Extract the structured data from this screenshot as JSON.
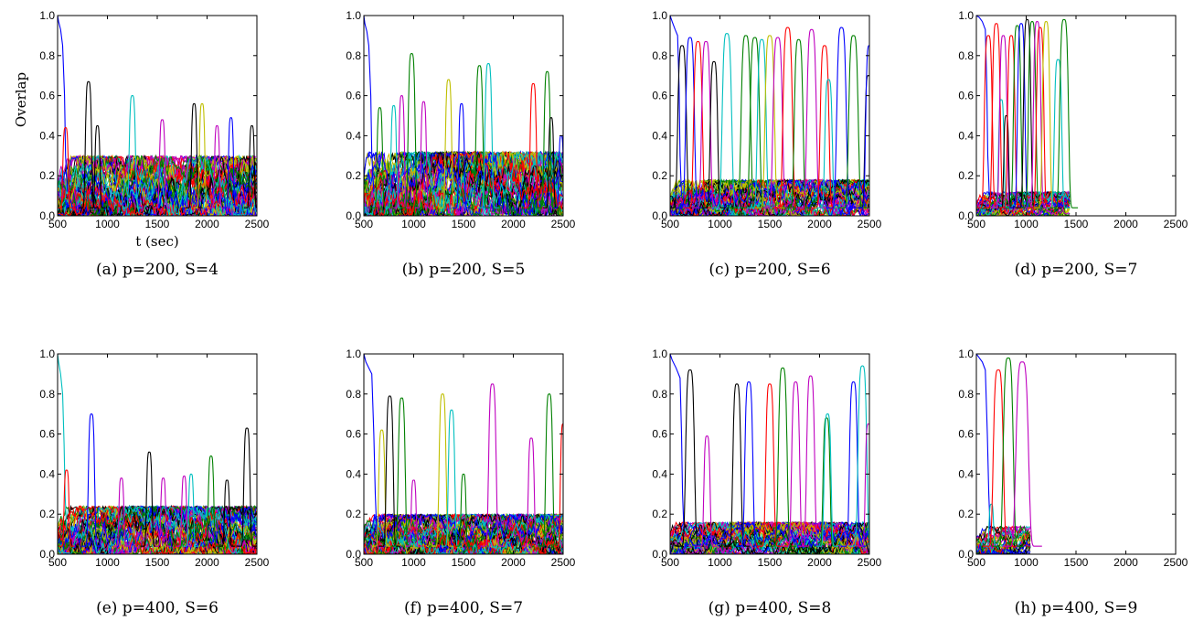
{
  "colors": {
    "series_cycle": [
      "#0000ff",
      "#008000",
      "#ff0000",
      "#00bfbf",
      "#bf00bf",
      "#bfbf00",
      "#000000"
    ]
  },
  "chart_data": [
    {
      "type": "line",
      "caption": "(a) p=200, S=4",
      "xlabel": "t (sec)",
      "ylabel": "Overlap",
      "xlim": [
        500,
        2500
      ],
      "ylim": [
        0.0,
        1.0
      ],
      "xticks": [
        "500",
        "1000",
        "1500",
        "2000",
        "2500"
      ],
      "yticks": [
        "0.0",
        "0.2",
        "0.4",
        "0.6",
        "0.8",
        "1.0"
      ],
      "x_end": 2500,
      "background": {
        "n_series": 60,
        "max": 0.3
      },
      "series": [
        {
          "color": "#0000ff",
          "x": [
            500,
            510,
            530,
            550,
            570,
            580,
            600
          ],
          "y": [
            1.0,
            0.97,
            0.93,
            0.85,
            0.6,
            0.3,
            0.12
          ]
        },
        {
          "color": "#ff0000",
          "peak_x": 580,
          "peak_y": 0.44,
          "width": 22
        },
        {
          "color": "#000000",
          "peak_x": 810,
          "peak_y": 0.67,
          "width": 25
        },
        {
          "color": "#000000",
          "peak_x": 900,
          "peak_y": 0.45,
          "width": 20
        },
        {
          "color": "#00bfbf",
          "peak_x": 1250,
          "peak_y": 0.6,
          "width": 25
        },
        {
          "color": "#bf00bf",
          "peak_x": 1550,
          "peak_y": 0.48,
          "width": 22
        },
        {
          "color": "#000000",
          "peak_x": 1870,
          "peak_y": 0.56,
          "width": 22
        },
        {
          "color": "#bfbf00",
          "peak_x": 1950,
          "peak_y": 0.56,
          "width": 22
        },
        {
          "color": "#bf00bf",
          "peak_x": 2100,
          "peak_y": 0.45,
          "width": 20
        },
        {
          "color": "#0000ff",
          "peak_x": 2240,
          "peak_y": 0.49,
          "width": 20
        },
        {
          "color": "#000000",
          "peak_x": 2450,
          "peak_y": 0.45,
          "width": 20
        }
      ]
    },
    {
      "type": "line",
      "caption": "(b) p=200, S=5",
      "xlim": [
        500,
        2500
      ],
      "ylim": [
        0.0,
        1.0
      ],
      "xticks": [
        "500",
        "1000",
        "1500",
        "2000",
        "2500"
      ],
      "yticks": [
        "0.0",
        "0.2",
        "0.4",
        "0.6",
        "0.8",
        "1.0"
      ],
      "x_end": 2500,
      "background": {
        "n_series": 60,
        "max": 0.32
      },
      "series": [
        {
          "color": "#0000ff",
          "x": [
            500,
            510,
            530,
            550,
            570,
            580,
            600
          ],
          "y": [
            1.0,
            0.96,
            0.92,
            0.85,
            0.6,
            0.3,
            0.12
          ]
        },
        {
          "color": "#008000",
          "peak_x": 660,
          "peak_y": 0.54,
          "width": 22
        },
        {
          "color": "#00bfbf",
          "peak_x": 800,
          "peak_y": 0.55,
          "width": 22
        },
        {
          "color": "#bf00bf",
          "peak_x": 880,
          "peak_y": 0.6,
          "width": 22
        },
        {
          "color": "#008000",
          "peak_x": 980,
          "peak_y": 0.81,
          "width": 28
        },
        {
          "color": "#bf00bf",
          "peak_x": 1100,
          "peak_y": 0.57,
          "width": 22
        },
        {
          "color": "#bfbf00",
          "peak_x": 1350,
          "peak_y": 0.68,
          "width": 25
        },
        {
          "color": "#0000ff",
          "peak_x": 1480,
          "peak_y": 0.56,
          "width": 22
        },
        {
          "color": "#008000",
          "peak_x": 1660,
          "peak_y": 0.75,
          "width": 28
        },
        {
          "color": "#00bfbf",
          "peak_x": 1750,
          "peak_y": 0.76,
          "width": 28
        },
        {
          "color": "#ff0000",
          "peak_x": 2200,
          "peak_y": 0.66,
          "width": 25
        },
        {
          "color": "#008000",
          "peak_x": 2340,
          "peak_y": 0.72,
          "width": 25
        },
        {
          "color": "#000000",
          "peak_x": 2380,
          "peak_y": 0.49,
          "width": 20
        },
        {
          "color": "#0000ff",
          "peak_x": 2480,
          "peak_y": 0.4,
          "width": 18
        }
      ]
    },
    {
      "type": "line",
      "caption": "(c) p=200, S=6",
      "xlim": [
        500,
        2500
      ],
      "ylim": [
        0.0,
        1.0
      ],
      "xticks": [
        "500",
        "1000",
        "1500",
        "2000",
        "2500"
      ],
      "yticks": [
        "0.0",
        "0.2",
        "0.4",
        "0.6",
        "0.8",
        "1.0"
      ],
      "x_end": 2500,
      "background": {
        "n_series": 50,
        "max": 0.18
      },
      "series": [
        {
          "color": "#0000ff",
          "x": [
            500,
            520,
            550,
            575,
            590,
            600,
            615
          ],
          "y": [
            1.0,
            0.97,
            0.93,
            0.9,
            0.65,
            0.3,
            0.1
          ]
        },
        {
          "color": "#000000",
          "peak_x": 620,
          "peak_y": 0.85,
          "width": 35
        },
        {
          "color": "#0000ff",
          "peak_x": 700,
          "peak_y": 0.89,
          "width": 35
        },
        {
          "color": "#ff0000",
          "peak_x": 780,
          "peak_y": 0.87,
          "width": 35
        },
        {
          "color": "#bf00bf",
          "peak_x": 860,
          "peak_y": 0.87,
          "width": 35
        },
        {
          "color": "#000000",
          "peak_x": 940,
          "peak_y": 0.77,
          "width": 30
        },
        {
          "color": "#00bfbf",
          "peak_x": 1070,
          "peak_y": 0.91,
          "width": 38
        },
        {
          "color": "#008000",
          "peak_x": 1260,
          "peak_y": 0.9,
          "width": 38
        },
        {
          "color": "#008000",
          "peak_x": 1350,
          "peak_y": 0.89,
          "width": 38
        },
        {
          "color": "#00bfbf",
          "peak_x": 1420,
          "peak_y": 0.88,
          "width": 35
        },
        {
          "color": "#bfbf00",
          "peak_x": 1500,
          "peak_y": 0.9,
          "width": 38
        },
        {
          "color": "#bf00bf",
          "peak_x": 1580,
          "peak_y": 0.89,
          "width": 38
        },
        {
          "color": "#ff0000",
          "peak_x": 1680,
          "peak_y": 0.94,
          "width": 38
        },
        {
          "color": "#008000",
          "peak_x": 1790,
          "peak_y": 0.88,
          "width": 35
        },
        {
          "color": "#bf00bf",
          "peak_x": 1920,
          "peak_y": 0.93,
          "width": 38
        },
        {
          "color": "#ff0000",
          "peak_x": 2050,
          "peak_y": 0.85,
          "width": 35
        },
        {
          "color": "#00bfbf",
          "peak_x": 2090,
          "peak_y": 0.68,
          "width": 30
        },
        {
          "color": "#0000ff",
          "peak_x": 2220,
          "peak_y": 0.94,
          "width": 38
        },
        {
          "color": "#008000",
          "peak_x": 2340,
          "peak_y": 0.9,
          "width": 38
        },
        {
          "color": "#000000",
          "peak_x": 2490,
          "peak_y": 0.7,
          "width": 28
        },
        {
          "color": "#0000ff",
          "peak_x": 2500,
          "peak_y": 0.85,
          "width": 30
        }
      ]
    },
    {
      "type": "line",
      "caption": "(d) p=200, S=7",
      "xlim": [
        500,
        2500
      ],
      "ylim": [
        0.0,
        1.0
      ],
      "xticks": [
        "500",
        "1000",
        "1500",
        "2000",
        "2500"
      ],
      "yticks": [
        "0.0",
        "0.2",
        "0.4",
        "0.6",
        "0.8",
        "1.0"
      ],
      "x_end": 1440,
      "background": {
        "n_series": 40,
        "max": 0.12
      },
      "series": [
        {
          "color": "#0000ff",
          "x": [
            500,
            530,
            560,
            590,
            605,
            615,
            630
          ],
          "y": [
            1.0,
            0.99,
            0.97,
            0.93,
            0.65,
            0.3,
            0.1
          ]
        },
        {
          "color": "#ff0000",
          "peak_x": 620,
          "peak_y": 0.9,
          "width": 32
        },
        {
          "color": "#ff0000",
          "peak_x": 700,
          "peak_y": 0.96,
          "width": 32
        },
        {
          "color": "#00bfbf",
          "peak_x": 750,
          "peak_y": 0.58,
          "width": 22
        },
        {
          "color": "#bf00bf",
          "peak_x": 770,
          "peak_y": 0.9,
          "width": 30
        },
        {
          "color": "#000000",
          "peak_x": 800,
          "peak_y": 0.5,
          "width": 20
        },
        {
          "color": "#ff0000",
          "peak_x": 850,
          "peak_y": 0.9,
          "width": 30
        },
        {
          "color": "#008000",
          "peak_x": 910,
          "peak_y": 0.95,
          "width": 30
        },
        {
          "color": "#0000ff",
          "peak_x": 950,
          "peak_y": 0.96,
          "width": 30
        },
        {
          "color": "#000000",
          "peak_x": 1010,
          "peak_y": 0.98,
          "width": 30
        },
        {
          "color": "#008000",
          "peak_x": 1060,
          "peak_y": 0.97,
          "width": 30
        },
        {
          "color": "#bf00bf",
          "peak_x": 1110,
          "peak_y": 0.97,
          "width": 30
        },
        {
          "color": "#ff0000",
          "peak_x": 1140,
          "peak_y": 0.94,
          "width": 30
        },
        {
          "color": "#bfbf00",
          "peak_x": 1200,
          "peak_y": 0.97,
          "width": 30
        },
        {
          "color": "#00bfbf",
          "peak_x": 1320,
          "peak_y": 0.78,
          "width": 30
        },
        {
          "color": "#008000",
          "peak_x": 1380,
          "peak_y": 0.98,
          "width": 35
        }
      ]
    },
    {
      "type": "line",
      "caption": "(e) p=400, S=6",
      "xlim": [
        500,
        2500
      ],
      "ylim": [
        0.0,
        1.0
      ],
      "xticks": [
        "500",
        "1000",
        "1500",
        "2000",
        "2500"
      ],
      "yticks": [
        "0.0",
        "0.2",
        "0.4",
        "0.6",
        "0.8",
        "1.0"
      ],
      "x_end": 2500,
      "background": {
        "n_series": 60,
        "max": 0.24
      },
      "series": [
        {
          "color": "#00bfbf",
          "x": [
            500,
            510,
            530,
            550,
            565,
            575,
            590
          ],
          "y": [
            1.0,
            0.96,
            0.9,
            0.8,
            0.55,
            0.3,
            0.12
          ]
        },
        {
          "color": "#ff0000",
          "peak_x": 590,
          "peak_y": 0.42,
          "width": 20
        },
        {
          "color": "#0000ff",
          "peak_x": 840,
          "peak_y": 0.7,
          "width": 25
        },
        {
          "color": "#bf00bf",
          "peak_x": 1140,
          "peak_y": 0.38,
          "width": 20
        },
        {
          "color": "#000000",
          "peak_x": 1420,
          "peak_y": 0.51,
          "width": 22
        },
        {
          "color": "#bf00bf",
          "peak_x": 1560,
          "peak_y": 0.38,
          "width": 20
        },
        {
          "color": "#bf00bf",
          "peak_x": 1770,
          "peak_y": 0.39,
          "width": 20
        },
        {
          "color": "#00bfbf",
          "peak_x": 1840,
          "peak_y": 0.4,
          "width": 20
        },
        {
          "color": "#008000",
          "peak_x": 2040,
          "peak_y": 0.49,
          "width": 22
        },
        {
          "color": "#000000",
          "peak_x": 2200,
          "peak_y": 0.37,
          "width": 20
        },
        {
          "color": "#000000",
          "peak_x": 2400,
          "peak_y": 0.63,
          "width": 25
        }
      ]
    },
    {
      "type": "line",
      "caption": "(f) p=400, S=7",
      "xlim": [
        500,
        2500
      ],
      "ylim": [
        0.0,
        1.0
      ],
      "xticks": [
        "500",
        "1000",
        "1500",
        "2000",
        "2500"
      ],
      "yticks": [
        "0.0",
        "0.2",
        "0.4",
        "0.6",
        "0.8",
        "1.0"
      ],
      "x_end": 2500,
      "background": {
        "n_series": 60,
        "max": 0.2
      },
      "series": [
        {
          "color": "#0000ff",
          "x": [
            500,
            520,
            550,
            580,
            600,
            615,
            630
          ],
          "y": [
            1.0,
            0.96,
            0.93,
            0.9,
            0.6,
            0.3,
            0.1
          ]
        },
        {
          "color": "#bfbf00",
          "peak_x": 680,
          "peak_y": 0.62,
          "width": 25
        },
        {
          "color": "#000000",
          "peak_x": 760,
          "peak_y": 0.79,
          "width": 28
        },
        {
          "color": "#008000",
          "peak_x": 880,
          "peak_y": 0.78,
          "width": 28
        },
        {
          "color": "#bf00bf",
          "peak_x": 1000,
          "peak_y": 0.37,
          "width": 20
        },
        {
          "color": "#bfbf00",
          "peak_x": 1290,
          "peak_y": 0.8,
          "width": 28
        },
        {
          "color": "#00bfbf",
          "peak_x": 1380,
          "peak_y": 0.72,
          "width": 26
        },
        {
          "color": "#008000",
          "peak_x": 1500,
          "peak_y": 0.4,
          "width": 20
        },
        {
          "color": "#bf00bf",
          "peak_x": 1790,
          "peak_y": 0.85,
          "width": 30
        },
        {
          "color": "#bf00bf",
          "peak_x": 2180,
          "peak_y": 0.58,
          "width": 24
        },
        {
          "color": "#008000",
          "peak_x": 2360,
          "peak_y": 0.8,
          "width": 28
        },
        {
          "color": "#ff0000",
          "peak_x": 2500,
          "peak_y": 0.65,
          "width": 22
        }
      ]
    },
    {
      "type": "line",
      "caption": "(g) p=400, S=8",
      "xlim": [
        500,
        2500
      ],
      "ylim": [
        0.0,
        1.0
      ],
      "xticks": [
        "500",
        "1000",
        "1500",
        "2000",
        "2500"
      ],
      "yticks": [
        "0.0",
        "0.2",
        "0.4",
        "0.6",
        "0.8",
        "1.0"
      ],
      "x_end": 2500,
      "background": {
        "n_series": 50,
        "max": 0.16
      },
      "series": [
        {
          "color": "#0000ff",
          "x": [
            500,
            520,
            560,
            600,
            615,
            625,
            640
          ],
          "y": [
            1.0,
            0.97,
            0.93,
            0.88,
            0.6,
            0.3,
            0.1
          ]
        },
        {
          "color": "#000000",
          "peak_x": 700,
          "peak_y": 0.92,
          "width": 35
        },
        {
          "color": "#bf00bf",
          "peak_x": 870,
          "peak_y": 0.59,
          "width": 25
        },
        {
          "color": "#000000",
          "peak_x": 1170,
          "peak_y": 0.85,
          "width": 32
        },
        {
          "color": "#0000ff",
          "peak_x": 1290,
          "peak_y": 0.86,
          "width": 32
        },
        {
          "color": "#ff0000",
          "peak_x": 1500,
          "peak_y": 0.85,
          "width": 32
        },
        {
          "color": "#008000",
          "peak_x": 1630,
          "peak_y": 0.93,
          "width": 35
        },
        {
          "color": "#bf00bf",
          "peak_x": 1760,
          "peak_y": 0.86,
          "width": 32
        },
        {
          "color": "#bf00bf",
          "peak_x": 1910,
          "peak_y": 0.89,
          "width": 32
        },
        {
          "color": "#008000",
          "peak_x": 2070,
          "peak_y": 0.68,
          "width": 28
        },
        {
          "color": "#00bfbf",
          "peak_x": 2080,
          "peak_y": 0.7,
          "width": 28
        },
        {
          "color": "#0000ff",
          "peak_x": 2340,
          "peak_y": 0.86,
          "width": 32
        },
        {
          "color": "#00bfbf",
          "peak_x": 2430,
          "peak_y": 0.94,
          "width": 35
        },
        {
          "color": "#bf00bf",
          "peak_x": 2490,
          "peak_y": 0.65,
          "width": 25
        }
      ]
    },
    {
      "type": "line",
      "caption": "(h) p=400, S=9",
      "xlim": [
        500,
        2500
      ],
      "ylim": [
        0.0,
        1.0
      ],
      "xticks": [
        "500",
        "1000",
        "1500",
        "2000",
        "2500"
      ],
      "yticks": [
        "0.0",
        "0.2",
        "0.4",
        "0.6",
        "0.8",
        "1.0"
      ],
      "x_end": 1040,
      "background": {
        "n_series": 30,
        "max": 0.14
      },
      "series": [
        {
          "color": "#0000ff",
          "x": [
            500,
            530,
            560,
            590,
            610,
            625,
            640
          ],
          "y": [
            1.0,
            0.98,
            0.96,
            0.92,
            0.6,
            0.3,
            0.1
          ]
        },
        {
          "color": "#00bfbf",
          "peak_x": 650,
          "peak_y": 0.25,
          "width": 18
        },
        {
          "color": "#ff0000",
          "peak_x": 720,
          "peak_y": 0.92,
          "width": 40
        },
        {
          "color": "#008000",
          "peak_x": 820,
          "peak_y": 0.98,
          "width": 40
        },
        {
          "color": "#bf00bf",
          "peak_x": 960,
          "peak_y": 0.96,
          "width": 50
        }
      ]
    }
  ]
}
